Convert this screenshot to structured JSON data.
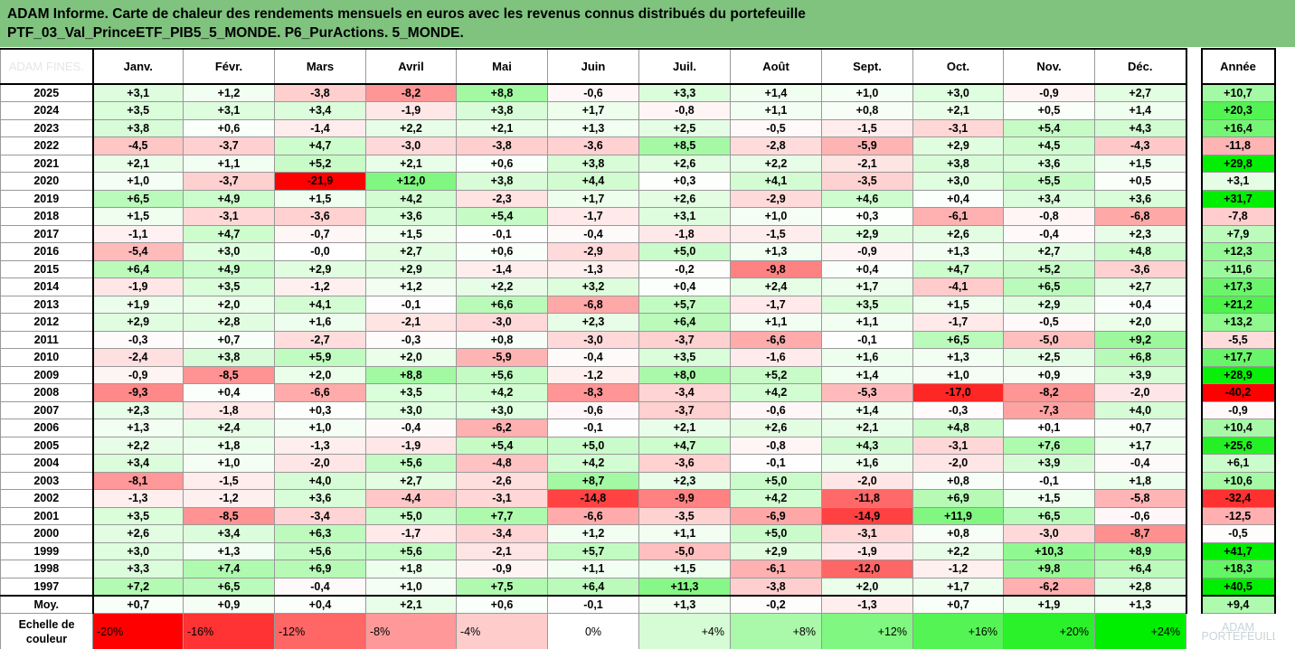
{
  "title": {
    "line1": "ADAM Informe. Carte de chaleur des rendements mensuels en euros avec les revenus connus distribués du portefeuille",
    "line2": "PTF_03_Val_PrinceETF_PIB5_5_MONDE. P6_PurActions. 5_MONDE."
  },
  "corner_text": "ADAM FINES.",
  "annual_label": "Année",
  "average_label": "Moy.",
  "scale_label": "Echelle de couleur",
  "logo_text": "ADAM\nPORTEFEUILLES",
  "colors": {
    "banner": "#7fc37f",
    "negative_max": "#ff0000",
    "neutral": "#ffffff",
    "positive_max": "#00ee00"
  },
  "chart_data": {
    "type": "heatmap",
    "title": "ADAM Informe. Carte de chaleur des rendements mensuels en euros avec les revenus connus distribués du portefeuille PTF_03_Val_PrinceETF_PIB5_5_MONDE. P6_PurActions. 5_MONDE.",
    "months": [
      "Janv.",
      "Févr.",
      "Mars",
      "Avril",
      "Mai",
      "Juin",
      "Juil.",
      "Août",
      "Sept.",
      "Oct.",
      "Nov.",
      "Déc."
    ],
    "rows": [
      {
        "year": "2025",
        "values": [
          "+3,1",
          "+1,2",
          "-3,8",
          "-8,2",
          "+8,8",
          "-0,6",
          "+3,3",
          "+1,4",
          "+1,0",
          "+3,0",
          "-0,9",
          "+2,7"
        ],
        "annual": "+10,7"
      },
      {
        "year": "2024",
        "values": [
          "+3,5",
          "+3,1",
          "+3,4",
          "-1,9",
          "+3,8",
          "+1,7",
          "-0,8",
          "+1,1",
          "+0,8",
          "+2,1",
          "+0,5",
          "+1,4"
        ],
        "annual": "+20,3"
      },
      {
        "year": "2023",
        "values": [
          "+3,8",
          "+0,6",
          "-1,4",
          "+2,2",
          "+2,1",
          "+1,3",
          "+2,5",
          "-0,5",
          "-1,5",
          "-3,1",
          "+5,4",
          "+4,3"
        ],
        "annual": "+16,4"
      },
      {
        "year": "2022",
        "values": [
          "-4,5",
          "-3,7",
          "+4,7",
          "-3,0",
          "-3,8",
          "-3,6",
          "+8,5",
          "-2,8",
          "-5,9",
          "+2,9",
          "+4,5",
          "-4,3"
        ],
        "annual": "-11,8"
      },
      {
        "year": "2021",
        "values": [
          "+2,1",
          "+1,1",
          "+5,2",
          "+2,1",
          "+0,6",
          "+3,8",
          "+2,6",
          "+2,2",
          "-2,1",
          "+3,8",
          "+3,6",
          "+1,5"
        ],
        "annual": "+29,8"
      },
      {
        "year": "2020",
        "values": [
          "+1,0",
          "-3,7",
          "-21,9",
          "+12,0",
          "+3,8",
          "+4,4",
          "+0,3",
          "+4,1",
          "-3,5",
          "+3,0",
          "+5,5",
          "+0,5"
        ],
        "annual": "+3,1"
      },
      {
        "year": "2019",
        "values": [
          "+6,5",
          "+4,9",
          "+1,5",
          "+4,2",
          "-2,3",
          "+1,7",
          "+2,6",
          "-2,9",
          "+4,6",
          "+0,4",
          "+3,4",
          "+3,6"
        ],
        "annual": "+31,7"
      },
      {
        "year": "2018",
        "values": [
          "+1,5",
          "-3,1",
          "-3,6",
          "+3,6",
          "+5,4",
          "-1,7",
          "+3,1",
          "+1,0",
          "+0,3",
          "-6,1",
          "-0,8",
          "-6,8"
        ],
        "annual": "-7,8"
      },
      {
        "year": "2017",
        "values": [
          "-1,1",
          "+4,7",
          "-0,7",
          "+1,5",
          "-0,1",
          "-0,4",
          "-1,8",
          "-1,5",
          "+2,9",
          "+2,6",
          "-0,4",
          "+2,3"
        ],
        "annual": "+7,9"
      },
      {
        "year": "2016",
        "values": [
          "-5,4",
          "+3,0",
          "-0,0",
          "+2,7",
          "+0,6",
          "-2,9",
          "+5,0",
          "+1,3",
          "-0,9",
          "+1,3",
          "+2,7",
          "+4,8"
        ],
        "annual": "+12,3"
      },
      {
        "year": "2015",
        "values": [
          "+6,4",
          "+4,9",
          "+2,9",
          "+2,9",
          "-1,4",
          "-1,3",
          "-0,2",
          "-9,8",
          "+0,4",
          "+4,7",
          "+5,2",
          "-3,6"
        ],
        "annual": "+11,6"
      },
      {
        "year": "2014",
        "values": [
          "-1,9",
          "+3,5",
          "-1,2",
          "+1,2",
          "+2,2",
          "+3,2",
          "+0,4",
          "+2,4",
          "+1,7",
          "-4,1",
          "+6,5",
          "+2,7"
        ],
        "annual": "+17,3"
      },
      {
        "year": "2013",
        "values": [
          "+1,9",
          "+2,0",
          "+4,1",
          "-0,1",
          "+6,6",
          "-6,8",
          "+5,7",
          "-1,7",
          "+3,5",
          "+1,5",
          "+2,9",
          "+0,4"
        ],
        "annual": "+21,2"
      },
      {
        "year": "2012",
        "values": [
          "+2,9",
          "+2,8",
          "+1,6",
          "-2,1",
          "-3,0",
          "+2,3",
          "+6,4",
          "+1,1",
          "+1,1",
          "-1,7",
          "-0,5",
          "+2,0"
        ],
        "annual": "+13,2"
      },
      {
        "year": "2011",
        "values": [
          "-0,3",
          "+0,7",
          "-2,7",
          "-0,3",
          "+0,8",
          "-3,0",
          "-3,7",
          "-6,6",
          "-0,1",
          "+6,5",
          "-5,0",
          "+9,2"
        ],
        "annual": "-5,5"
      },
      {
        "year": "2010",
        "values": [
          "-2,4",
          "+3,8",
          "+5,9",
          "+2,0",
          "-5,9",
          "-0,4",
          "+3,5",
          "-1,6",
          "+1,6",
          "+1,3",
          "+2,5",
          "+6,8"
        ],
        "annual": "+17,7"
      },
      {
        "year": "2009",
        "values": [
          "-0,9",
          "-8,5",
          "+2,0",
          "+8,8",
          "+5,6",
          "-1,2",
          "+8,0",
          "+5,2",
          "+1,4",
          "+1,0",
          "+0,9",
          "+3,9"
        ],
        "annual": "+28,9"
      },
      {
        "year": "2008",
        "values": [
          "-9,3",
          "+0,4",
          "-6,6",
          "+3,5",
          "+4,2",
          "-8,3",
          "-3,4",
          "+4,2",
          "-5,3",
          "-17,0",
          "-8,2",
          "-2,0"
        ],
        "annual": "-40,2"
      },
      {
        "year": "2007",
        "values": [
          "+2,3",
          "-1,8",
          "+0,3",
          "+3,0",
          "+3,0",
          "-0,6",
          "-3,7",
          "-0,6",
          "+1,4",
          "-0,3",
          "-7,3",
          "+4,0"
        ],
        "annual": "-0,9"
      },
      {
        "year": "2006",
        "values": [
          "+1,3",
          "+2,4",
          "+1,0",
          "-0,4",
          "-6,2",
          "-0,1",
          "+2,1",
          "+2,6",
          "+2,1",
          "+4,8",
          "+0,1",
          "+0,7"
        ],
        "annual": "+10,4"
      },
      {
        "year": "2005",
        "values": [
          "+2,2",
          "+1,8",
          "-1,3",
          "-1,9",
          "+5,4",
          "+5,0",
          "+4,7",
          "-0,8",
          "+4,3",
          "-3,1",
          "+7,6",
          "+1,7"
        ],
        "annual": "+25,6"
      },
      {
        "year": "2004",
        "values": [
          "+3,4",
          "+1,0",
          "-2,0",
          "+5,6",
          "-4,8",
          "+4,2",
          "-3,6",
          "-0,1",
          "+1,6",
          "-2,0",
          "+3,9",
          "-0,4"
        ],
        "annual": "+6,1"
      },
      {
        "year": "2003",
        "values": [
          "-8,1",
          "-1,5",
          "+4,0",
          "+2,7",
          "-2,6",
          "+8,7",
          "+2,3",
          "+5,0",
          "-2,0",
          "+0,8",
          "-0,1",
          "+1,8"
        ],
        "annual": "+10,6"
      },
      {
        "year": "2002",
        "values": [
          "-1,3",
          "-1,2",
          "+3,6",
          "-4,4",
          "-3,1",
          "-14,8",
          "-9,9",
          "+4,2",
          "-11,8",
          "+6,9",
          "+1,5",
          "-5,8"
        ],
        "annual": "-32,4"
      },
      {
        "year": "2001",
        "values": [
          "+3,5",
          "-8,5",
          "-3,4",
          "+5,0",
          "+7,7",
          "-6,6",
          "-3,5",
          "-6,9",
          "-14,9",
          "+11,9",
          "+6,5",
          "-0,6"
        ],
        "annual": "-12,5"
      },
      {
        "year": "2000",
        "values": [
          "+2,6",
          "+3,4",
          "+6,3",
          "-1,7",
          "-3,4",
          "+1,2",
          "+1,1",
          "+5,0",
          "-3,1",
          "+0,8",
          "-3,0",
          "-8,7"
        ],
        "annual": "-0,5"
      },
      {
        "year": "1999",
        "values": [
          "+3,0",
          "+1,3",
          "+5,6",
          "+5,6",
          "-2,1",
          "+5,7",
          "-5,0",
          "+2,9",
          "-1,9",
          "+2,2",
          "+10,3",
          "+8,9"
        ],
        "annual": "+41,7"
      },
      {
        "year": "1998",
        "values": [
          "+3,3",
          "+7,4",
          "+6,9",
          "+1,8",
          "-0,9",
          "+1,1",
          "+1,5",
          "-6,1",
          "-12,0",
          "-1,2",
          "+9,8",
          "+6,4"
        ],
        "annual": "+18,3"
      },
      {
        "year": "1997",
        "values": [
          "+7,2",
          "+6,5",
          "-0,4",
          "+1,0",
          "+7,5",
          "+6,4",
          "+11,3",
          "-3,8",
          "+2,0",
          "+1,7",
          "-6,2",
          "+2,8"
        ],
        "annual": "+40,5"
      }
    ],
    "average": {
      "values": [
        "+0,7",
        "+0,9",
        "+0,4",
        "+2,1",
        "+0,6",
        "-0,1",
        "+1,3",
        "-0,2",
        "-1,3",
        "+0,7",
        "+1,9",
        "+1,3"
      ],
      "annual": "+9,4"
    },
    "scale": [
      "-20%",
      "-16%",
      "-12%",
      "-8%",
      "-4%",
      "0%",
      "+4%",
      "+8%",
      "+12%",
      "+16%",
      "+20%",
      "+24%"
    ]
  }
}
